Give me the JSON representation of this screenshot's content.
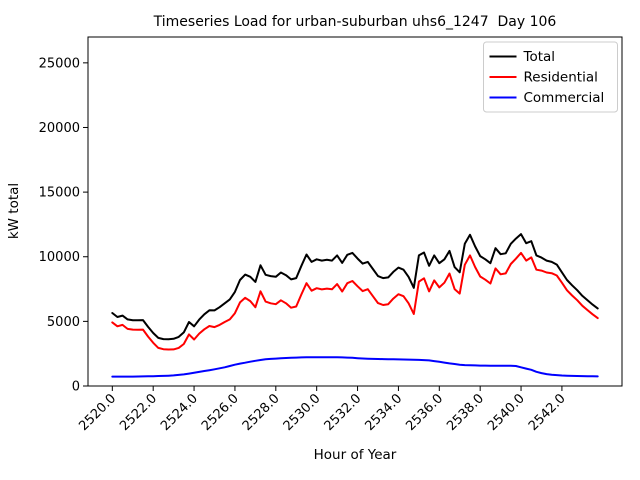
{
  "chart_data": {
    "type": "line",
    "title": "Timeseries Load for urban-suburban uhs6_1247  Day 106",
    "xlabel": "Hour of Year",
    "ylabel": "kW total",
    "xlim": [
      2518.81,
      2544.94
    ],
    "ylim": [
      0,
      27000
    ],
    "grid": false,
    "legend_position": "upper-right",
    "legend_border_color": "#cccccc",
    "background_color": "#ffffff",
    "xticks": {
      "values": [
        2520,
        2522,
        2524,
        2526,
        2528,
        2530,
        2532,
        2534,
        2536,
        2538,
        2540,
        2542
      ],
      "labels": [
        "2520.0",
        "2522.0",
        "2524.0",
        "2526.0",
        "2528.0",
        "2530.0",
        "2532.0",
        "2534.0",
        "2536.0",
        "2538.0",
        "2540.0",
        "2542.0"
      ]
    },
    "yticks": {
      "values": [
        0,
        5000,
        10000,
        15000,
        20000,
        25000
      ],
      "labels": [
        "0",
        "5000",
        "10000",
        "15000",
        "20000",
        "25000"
      ]
    },
    "x": [
      2520.0,
      2520.25,
      2520.5,
      2520.75,
      2521.0,
      2521.25,
      2521.5,
      2521.75,
      2522.0,
      2522.25,
      2522.5,
      2522.75,
      2523.0,
      2523.25,
      2523.5,
      2523.75,
      2524.0,
      2524.25,
      2524.5,
      2524.75,
      2525.0,
      2525.25,
      2525.5,
      2525.75,
      2526.0,
      2526.25,
      2526.5,
      2526.75,
      2527.0,
      2527.25,
      2527.5,
      2527.75,
      2528.0,
      2528.25,
      2528.5,
      2528.75,
      2529.0,
      2529.25,
      2529.5,
      2529.75,
      2530.0,
      2530.25,
      2530.5,
      2530.75,
      2531.0,
      2531.25,
      2531.5,
      2531.75,
      2532.0,
      2532.25,
      2532.5,
      2532.75,
      2533.0,
      2533.25,
      2533.5,
      2533.75,
      2534.0,
      2534.25,
      2534.5,
      2534.75,
      2535.0,
      2535.25,
      2535.5,
      2535.75,
      2536.0,
      2536.25,
      2536.5,
      2536.75,
      2537.0,
      2537.25,
      2537.5,
      2537.75,
      2538.0,
      2538.25,
      2538.5,
      2538.75,
      2539.0,
      2539.25,
      2539.5,
      2539.75,
      2540.0,
      2540.25,
      2540.5,
      2540.75,
      2541.0,
      2541.25,
      2541.5,
      2541.75,
      2542.0,
      2542.25,
      2542.5,
      2542.75,
      2543.0,
      2543.25,
      2543.5,
      2543.75
    ],
    "series": [
      {
        "name": "Total",
        "color": "#000000",
        "values": [
          5650,
          5340,
          5450,
          5150,
          5090,
          5080,
          5100,
          4570,
          4100,
          3720,
          3630,
          3620,
          3650,
          3800,
          4150,
          4950,
          4620,
          5140,
          5550,
          5860,
          5850,
          6100,
          6400,
          6700,
          7280,
          8200,
          8620,
          8450,
          8050,
          9340,
          8600,
          8500,
          8450,
          8780,
          8570,
          8250,
          8350,
          9300,
          10170,
          9600,
          9800,
          9700,
          9760,
          9700,
          10100,
          9520,
          10150,
          10300,
          9860,
          9470,
          9600,
          9050,
          8500,
          8350,
          8400,
          8830,
          9160,
          9000,
          8440,
          7600,
          10100,
          10330,
          9300,
          10100,
          9500,
          9800,
          10450,
          9200,
          8800,
          11000,
          11700,
          10800,
          10050,
          9800,
          9500,
          10660,
          10200,
          10270,
          11000,
          11400,
          11750,
          11050,
          11200,
          10100,
          9930,
          9700,
          9600,
          9390,
          8800,
          8200,
          7790,
          7410,
          6970,
          6630,
          6300,
          6000
        ]
      },
      {
        "name": "Residential",
        "color": "#ff0000",
        "values": [
          4920,
          4615,
          4725,
          4420,
          4360,
          4345,
          4360,
          3820,
          3340,
          2950,
          2845,
          2820,
          2830,
          2945,
          3250,
          3990,
          3600,
          4050,
          4390,
          4640,
          4560,
          4730,
          4950,
          5150,
          5630,
          6470,
          6820,
          6570,
          6100,
          7330,
          6530,
          6400,
          6330,
          6630,
          6400,
          6060,
          6150,
          7090,
          7950,
          7375,
          7570,
          7470,
          7535,
          7480,
          7880,
          7310,
          7950,
          8120,
          7710,
          7340,
          7490,
          6950,
          6410,
          6270,
          6330,
          6765,
          7100,
          6950,
          6400,
          5570,
          8080,
          8330,
          7320,
          8170,
          7630,
          7990,
          8700,
          7500,
          7150,
          9380,
          10100,
          9210,
          8470,
          8225,
          7930,
          9095,
          8640,
          8710,
          9440,
          9850,
          10300,
          9700,
          9950,
          9000,
          8930,
          8780,
          8730,
          8550,
          7990,
          7405,
          7005,
          6635,
          6205,
          5875,
          5550,
          5255
        ]
      },
      {
        "name": "Commercial",
        "color": "#0000ff",
        "values": [
          730,
          725,
          725,
          730,
          730,
          735,
          740,
          750,
          760,
          770,
          785,
          800,
          820,
          855,
          900,
          960,
          1020,
          1090,
          1160,
          1220,
          1290,
          1370,
          1450,
          1550,
          1650,
          1730,
          1800,
          1880,
          1950,
          2010,
          2070,
          2100,
          2120,
          2150,
          2170,
          2190,
          2200,
          2210,
          2220,
          2225,
          2230,
          2230,
          2225,
          2220,
          2220,
          2210,
          2200,
          2180,
          2150,
          2130,
          2110,
          2100,
          2090,
          2080,
          2070,
          2065,
          2060,
          2050,
          2040,
          2030,
          2020,
          2000,
          1980,
          1930,
          1870,
          1810,
          1750,
          1700,
          1650,
          1620,
          1600,
          1590,
          1580,
          1575,
          1570,
          1565,
          1560,
          1560,
          1560,
          1550,
          1450,
          1350,
          1250,
          1100,
          1000,
          920,
          870,
          840,
          810,
          795,
          785,
          775,
          765,
          755,
          750,
          745
        ]
      }
    ]
  }
}
